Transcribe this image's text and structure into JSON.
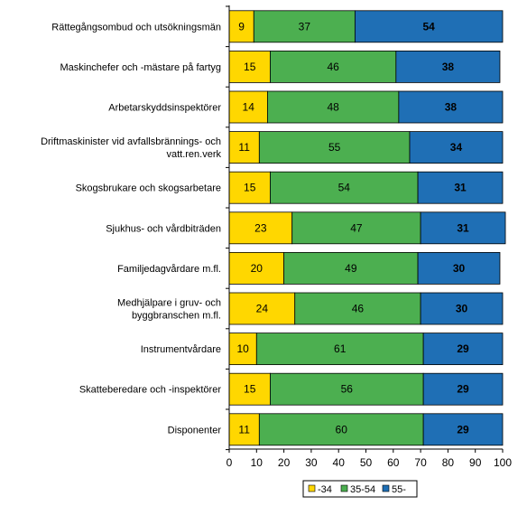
{
  "chart_data": {
    "type": "bar",
    "orientation": "horizontal",
    "stacked": true,
    "categories": [
      [
        "Rättegångsombud och utsökningsmän"
      ],
      [
        "Maskinchefer och -mästare på fartyg"
      ],
      [
        "Arbetarskyddsinspektörer"
      ],
      [
        "Driftmaskinister vid avfallsbrännings- och",
        "vatt.ren.verk"
      ],
      [
        "Skogsbrukare och skogsarbetare"
      ],
      [
        "Sjukhus- och vårdbiträden"
      ],
      [
        "Familjedagvårdare m.fl."
      ],
      [
        "Medhjälpare i gruv- och",
        "byggbranschen m.fl."
      ],
      [
        "Instrumentvårdare"
      ],
      [
        "Skatteberedare och -inspektörer"
      ],
      [
        "Disponenter"
      ]
    ],
    "series": [
      {
        "name": "-34",
        "color": "#ffd700",
        "values": [
          9,
          15,
          14,
          11,
          15,
          23,
          20,
          24,
          10,
          15,
          11
        ],
        "label_bold": false
      },
      {
        "name": "35-54",
        "color": "#4caf50",
        "values": [
          37,
          46,
          48,
          55,
          54,
          47,
          49,
          46,
          61,
          56,
          60
        ],
        "label_bold": false
      },
      {
        "name": "55-",
        "color": "#1f6fb5",
        "values": [
          54,
          38,
          38,
          34,
          31,
          31,
          30,
          30,
          29,
          29,
          29
        ],
        "label_bold": true
      }
    ],
    "xlim": [
      0,
      100
    ],
    "xticks": [
      "0",
      "10",
      "20",
      "30",
      "40",
      "50",
      "60",
      "70",
      "80",
      "90",
      "100"
    ],
    "grid": false,
    "legend_position": "bottom-right"
  }
}
